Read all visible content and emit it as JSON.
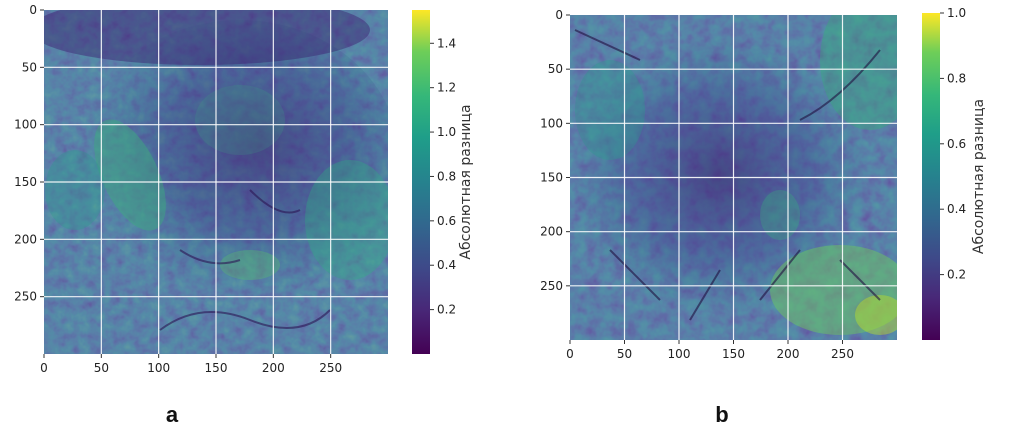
{
  "chart_data": [
    {
      "type": "heatmap",
      "panel_label": "a",
      "x_ticks": [
        0,
        50,
        100,
        150,
        200,
        250
      ],
      "y_ticks": [
        0,
        50,
        100,
        150,
        200,
        250
      ],
      "xlim": [
        0,
        300
      ],
      "ylim": [
        300,
        0
      ],
      "grid": true,
      "colorbar": {
        "label": "Абсолютная разница",
        "ticks": [
          "0.2",
          "0.4",
          "0.6",
          "0.8",
          "1.0",
          "1.2",
          "1.4"
        ],
        "tick_values": [
          0.2,
          0.4,
          0.6,
          0.8,
          1.0,
          1.2,
          1.4
        ],
        "range": [
          0,
          1.55
        ],
        "colormap": "viridis"
      }
    },
    {
      "type": "heatmap",
      "panel_label": "b",
      "x_ticks": [
        0,
        50,
        100,
        150,
        200,
        250
      ],
      "y_ticks": [
        0,
        50,
        100,
        150,
        200,
        250
      ],
      "xlim": [
        0,
        300
      ],
      "ylim": [
        300,
        0
      ],
      "grid": true,
      "colorbar": {
        "label": "Абсолютная разница",
        "ticks": [
          "0.2",
          "0.4",
          "0.6",
          "0.8",
          "1.0"
        ],
        "tick_values": [
          0.2,
          0.4,
          0.6,
          0.8,
          1.0
        ],
        "range": [
          0,
          1.0
        ],
        "colormap": "viridis"
      }
    }
  ]
}
